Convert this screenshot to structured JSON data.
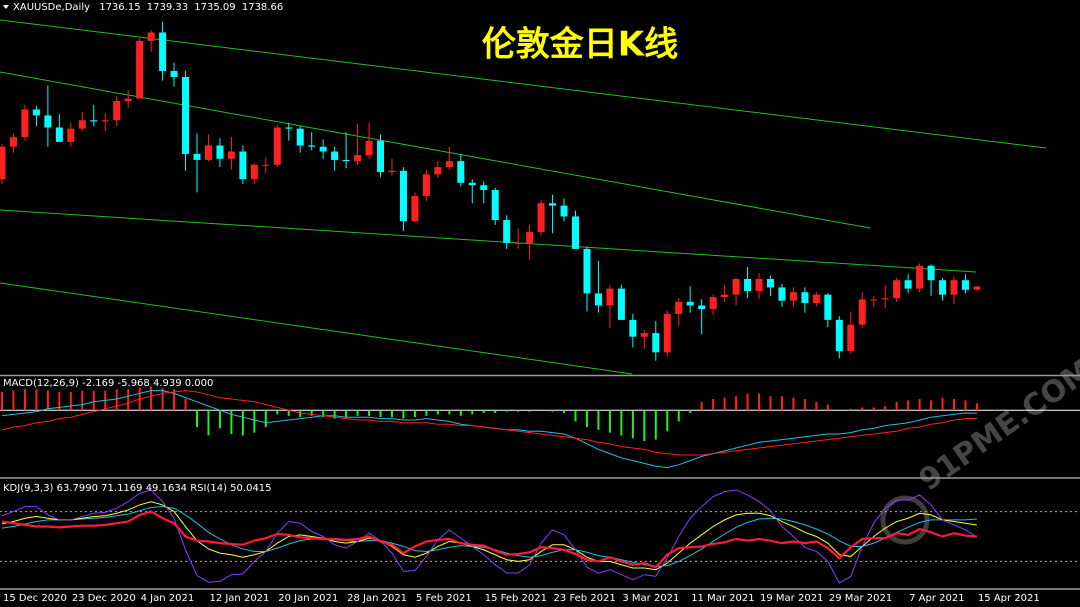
{
  "watermark": "91PME.COM",
  "chart_data": [
    {
      "type": "candlestick",
      "title": "伦敦金日K线",
      "symbol": "XAUUSDe,Daily",
      "up_color": "#ff2020",
      "down_color": "#00ffff",
      "ylim": [
        1666,
        1977
      ],
      "categories": [
        "15 Dec 2020",
        null,
        null,
        null,
        null,
        null,
        "23 Dec 2020",
        null,
        null,
        null,
        null,
        null,
        "4 Jan 2021",
        null,
        null,
        null,
        null,
        null,
        "12 Jan 2021",
        null,
        null,
        null,
        null,
        null,
        "20 Jan 2021",
        null,
        null,
        null,
        null,
        null,
        "28 Jan 2021",
        null,
        null,
        null,
        null,
        null,
        "5 Feb 2021",
        null,
        null,
        null,
        null,
        null,
        "15 Feb 2021",
        null,
        null,
        null,
        null,
        null,
        "23 Feb 2021",
        null,
        null,
        null,
        null,
        null,
        "3 Mar 2021",
        null,
        null,
        null,
        null,
        null,
        "11 Mar 2021",
        null,
        null,
        null,
        null,
        null,
        "19 Mar 2021",
        null,
        null,
        null,
        null,
        null,
        "29 Mar 2021",
        null,
        null,
        null,
        null,
        null,
        null,
        "7 Apr 2021",
        null,
        null,
        null,
        null,
        null,
        "15 Apr 2021"
      ],
      "open": [
        1828,
        1855,
        1863,
        1886,
        1881,
        1871,
        1859,
        1870,
        1877,
        1876,
        1877,
        1893,
        1895,
        1943,
        1950,
        1918,
        1913,
        1849,
        1844,
        1856,
        1845,
        1851,
        1828,
        1840,
        1840,
        1871,
        1870,
        1856,
        1855,
        1851,
        1844,
        1843,
        1848,
        1860,
        1834,
        1835,
        1793,
        1814,
        1832,
        1838,
        1843,
        1825,
        1823,
        1819,
        1794,
        1775,
        1775,
        1784,
        1808,
        1806,
        1797,
        1770,
        1733,
        1723,
        1737,
        1711,
        1697,
        1700,
        1684,
        1716,
        1726,
        1723,
        1720,
        1730,
        1732,
        1745,
        1735,
        1745,
        1738,
        1727,
        1734,
        1725,
        1732,
        1711,
        1685,
        1707,
        1728,
        1728,
        1729,
        1744,
        1737,
        1756,
        1744,
        1732,
        1744,
        1736.15
      ],
      "high": [
        1857,
        1866,
        1890,
        1889,
        1906,
        1882,
        1875,
        1884,
        1890,
        1883,
        1897,
        1902,
        1945,
        1952,
        1959,
        1925,
        1918,
        1866,
        1865,
        1862,
        1863,
        1856,
        1841,
        1846,
        1873,
        1875,
        1872,
        1867,
        1861,
        1855,
        1867,
        1874,
        1875,
        1865,
        1845,
        1838,
        1817,
        1836,
        1843,
        1855,
        1849,
        1828,
        1826,
        1821,
        1798,
        1787,
        1790,
        1811,
        1815,
        1812,
        1802,
        1772,
        1760,
        1740,
        1740,
        1716,
        1703,
        1710,
        1719,
        1729,
        1739,
        1728,
        1732,
        1740,
        1746,
        1755,
        1750,
        1748,
        1741,
        1738,
        1738,
        1734,
        1733,
        1714,
        1718,
        1734,
        1731,
        1740,
        1746,
        1749,
        1758,
        1757,
        1746,
        1747,
        1749,
        1739.33
      ],
      "low": [
        1824,
        1850,
        1860,
        1872,
        1855,
        1859,
        1855,
        1868,
        1872,
        1868,
        1872,
        1887,
        1895,
        1934,
        1910,
        1905,
        1835,
        1817,
        1843,
        1838,
        1836,
        1824,
        1824,
        1833,
        1838,
        1860,
        1850,
        1852,
        1845,
        1835,
        1837,
        1840,
        1845,
        1830,
        1831,
        1785,
        1792,
        1810,
        1829,
        1836,
        1822,
        1808,
        1808,
        1790,
        1770,
        1770,
        1761,
        1781,
        1783,
        1793,
        1770,
        1718,
        1717,
        1704,
        1711,
        1688,
        1687,
        1677,
        1680,
        1706,
        1717,
        1699,
        1715,
        1726,
        1723,
        1729,
        1728,
        1731,
        1722,
        1722,
        1717,
        1722,
        1705,
        1679,
        1683,
        1704,
        1722,
        1721,
        1726,
        1733,
        1734,
        1731,
        1727,
        1724,
        1733,
        1735.09
      ],
      "close": [
        1855,
        1863,
        1886,
        1881,
        1871,
        1859,
        1870,
        1877,
        1876,
        1877,
        1893,
        1895,
        1943,
        1950,
        1918,
        1913,
        1849,
        1844,
        1856,
        1845,
        1851,
        1828,
        1840,
        1840,
        1871,
        1870,
        1856,
        1855,
        1851,
        1844,
        1843,
        1848,
        1860,
        1834,
        1835,
        1793,
        1814,
        1832,
        1838,
        1843,
        1825,
        1823,
        1819,
        1794,
        1775,
        1775,
        1784,
        1808,
        1806,
        1797,
        1770,
        1733,
        1723,
        1737,
        1711,
        1697,
        1700,
        1684,
        1716,
        1726,
        1723,
        1720,
        1730,
        1732,
        1745,
        1735,
        1745,
        1738,
        1727,
        1734,
        1725,
        1732,
        1711,
        1685,
        1707,
        1728,
        1728,
        1729,
        1744,
        1737,
        1756,
        1744,
        1732,
        1744,
        1736,
        1738.66
      ]
    },
    {
      "type": "bar",
      "label": "MACD(12,26,9) -2.169 -5.968 4.939 0.000",
      "up_color": "#ff2020",
      "down_color": "#22ee22",
      "zero_color": "#ffffff",
      "ylim": [
        -47,
        23
      ],
      "values": [
        13,
        14,
        15,
        15,
        14,
        13,
        13,
        14,
        14,
        14,
        15,
        15,
        16,
        17,
        16,
        15,
        8,
        -12,
        -18,
        -13,
        -17,
        -18,
        -16,
        -12,
        -3,
        -4,
        -5,
        -4,
        -5,
        -6,
        -5,
        -4,
        -4,
        -5,
        -5,
        -6,
        -5,
        -4,
        -3,
        -3,
        -4,
        -3,
        -2,
        -2,
        -1,
        -1,
        -1,
        0,
        -1,
        -2,
        -8,
        -12,
        -14,
        -16,
        -18,
        -20,
        -22,
        -21,
        -15,
        -8,
        -2,
        6,
        8,
        9,
        10,
        12,
        12,
        10,
        10,
        9,
        8,
        6,
        4,
        0,
        1,
        2,
        2,
        3,
        6,
        7,
        8,
        7,
        9,
        8,
        7,
        4.939
      ],
      "series": [
        {
          "color": "#20c0e0",
          "values": [
            -4,
            -3,
            -2,
            -1,
            1,
            2,
            3,
            4,
            6,
            7,
            8,
            10,
            12,
            14,
            14,
            12,
            9,
            6,
            3,
            0,
            -3,
            -5,
            -7,
            -9,
            -8,
            -7,
            -6,
            -5,
            -4,
            -4,
            -5,
            -5,
            -5,
            -6,
            -6,
            -7,
            -7,
            -6,
            -7,
            -8,
            -10,
            -11,
            -12,
            -13,
            -14,
            -14,
            -15,
            -15,
            -16,
            -17,
            -20,
            -24,
            -28,
            -31,
            -34,
            -36,
            -38,
            -40,
            -41,
            -39,
            -36,
            -33,
            -31,
            -29,
            -27,
            -25,
            -23,
            -22,
            -21,
            -20,
            -19,
            -18,
            -17,
            -17,
            -16,
            -14,
            -13,
            -11,
            -10,
            -9,
            -7,
            -5,
            -4,
            -3,
            -2,
            -2.169
          ]
        },
        {
          "color": "#ff2020",
          "values": [
            -14,
            -12,
            -11,
            -9,
            -8,
            -6,
            -5,
            -3,
            -1,
            1,
            3,
            5,
            8,
            10,
            12,
            13,
            14,
            13,
            11,
            9,
            8,
            7,
            6,
            4,
            2,
            0,
            -2,
            -3,
            -4,
            -5,
            -6,
            -7,
            -7,
            -8,
            -8,
            -9,
            -9,
            -9,
            -10,
            -10,
            -11,
            -11,
            -12,
            -13,
            -14,
            -15,
            -16,
            -17,
            -18,
            -19,
            -20,
            -21,
            -23,
            -24,
            -26,
            -27,
            -28,
            -30,
            -31,
            -32,
            -32,
            -32,
            -31,
            -30,
            -29,
            -28,
            -27,
            -26,
            -25,
            -24,
            -23,
            -22,
            -21,
            -20,
            -19,
            -18,
            -17,
            -16,
            -15,
            -13,
            -12,
            -10,
            -9,
            -7,
            -6,
            -5.968
          ]
        }
      ]
    },
    {
      "type": "line",
      "label": "KDJ(9,3,3) 63.7990 71.1169 49.1634  RSI(14) 50.0415",
      "ylim": [
        -12,
        118
      ],
      "levels": [
        20,
        80
      ],
      "level_color": "#c8c800",
      "series": [
        {
          "color": "#20c0e0",
          "line_width": 1,
          "values": [
            60,
            62,
            65,
            68,
            70,
            70,
            70,
            71,
            72,
            73,
            75,
            77,
            81,
            85,
            86,
            84,
            76,
            66,
            55,
            47,
            40,
            35,
            32,
            32,
            36,
            41,
            45,
            47,
            47,
            46,
            45,
            44,
            45,
            45,
            42,
            38,
            33,
            32,
            34,
            37,
            39,
            38,
            37,
            34,
            30,
            27,
            25,
            27,
            31,
            34,
            34,
            31,
            27,
            25,
            22,
            19,
            16,
            14,
            15,
            20,
            27,
            35,
            44,
            53,
            61,
            67,
            71,
            72,
            71,
            68,
            64,
            59,
            53,
            45,
            38,
            38,
            42,
            48,
            55,
            61,
            67,
            70,
            70,
            70,
            70,
            71.1169
          ]
        },
        {
          "color": "#ffff30",
          "line_width": 1,
          "values": [
            65,
            68,
            72,
            74,
            72,
            70,
            70,
            72,
            74,
            75,
            78,
            82,
            88,
            92,
            88,
            80,
            62,
            45,
            35,
            30,
            28,
            25,
            28,
            32,
            42,
            50,
            52,
            50,
            48,
            44,
            42,
            44,
            48,
            45,
            38,
            28,
            25,
            30,
            38,
            44,
            42,
            38,
            34,
            28,
            22,
            20,
            22,
            32,
            40,
            40,
            34,
            25,
            20,
            20,
            16,
            12,
            12,
            10,
            18,
            30,
            42,
            52,
            62,
            70,
            76,
            78,
            78,
            75,
            68,
            62,
            55,
            50,
            42,
            28,
            26,
            38,
            50,
            60,
            68,
            72,
            78,
            76,
            70,
            68,
            66,
            63.799
          ]
        },
        {
          "color": "#8a3cff",
          "line_width": 1,
          "values": [
            75,
            80,
            86,
            86,
            76,
            70,
            70,
            74,
            78,
            79,
            84,
            92,
            102,
            106,
            92,
            72,
            34,
            3,
            -5,
            -4,
            4,
            5,
            20,
            32,
            54,
            68,
            66,
            56,
            50,
            40,
            36,
            44,
            54,
            45,
            30,
            8,
            9,
            26,
            46,
            58,
            48,
            38,
            28,
            16,
            6,
            6,
            16,
            42,
            58,
            52,
            34,
            13,
            6,
            10,
            4,
            -2,
            4,
            2,
            24,
            50,
            72,
            86,
            98,
            104,
            106,
            100,
            92,
            81,
            62,
            50,
            37,
            32,
            20,
            -6,
            2,
            38,
            66,
            84,
            94,
            94,
            100,
            88,
            70,
            64,
            58,
            49.1634
          ]
        },
        {
          "color": "#ff1a3c",
          "line_width": 2.2,
          "values": [
            68,
            66,
            64,
            62,
            62,
            61,
            62,
            63,
            63,
            64,
            66,
            68,
            76,
            80,
            72,
            66,
            50,
            45,
            44,
            42,
            41,
            40,
            45,
            48,
            53,
            52,
            49,
            48,
            47,
            47,
            46,
            47,
            50,
            44,
            40,
            30,
            38,
            44,
            46,
            47,
            42,
            40,
            39,
            33,
            28,
            29,
            31,
            37,
            36,
            34,
            29,
            22,
            20,
            25,
            20,
            16,
            18,
            13,
            28,
            36,
            37,
            38,
            41,
            43,
            47,
            45,
            47,
            45,
            42,
            44,
            42,
            44,
            36,
            24,
            37,
            47,
            48,
            48,
            54,
            52,
            59,
            55,
            50,
            54,
            51,
            50.0415
          ]
        }
      ]
    }
  ]
}
